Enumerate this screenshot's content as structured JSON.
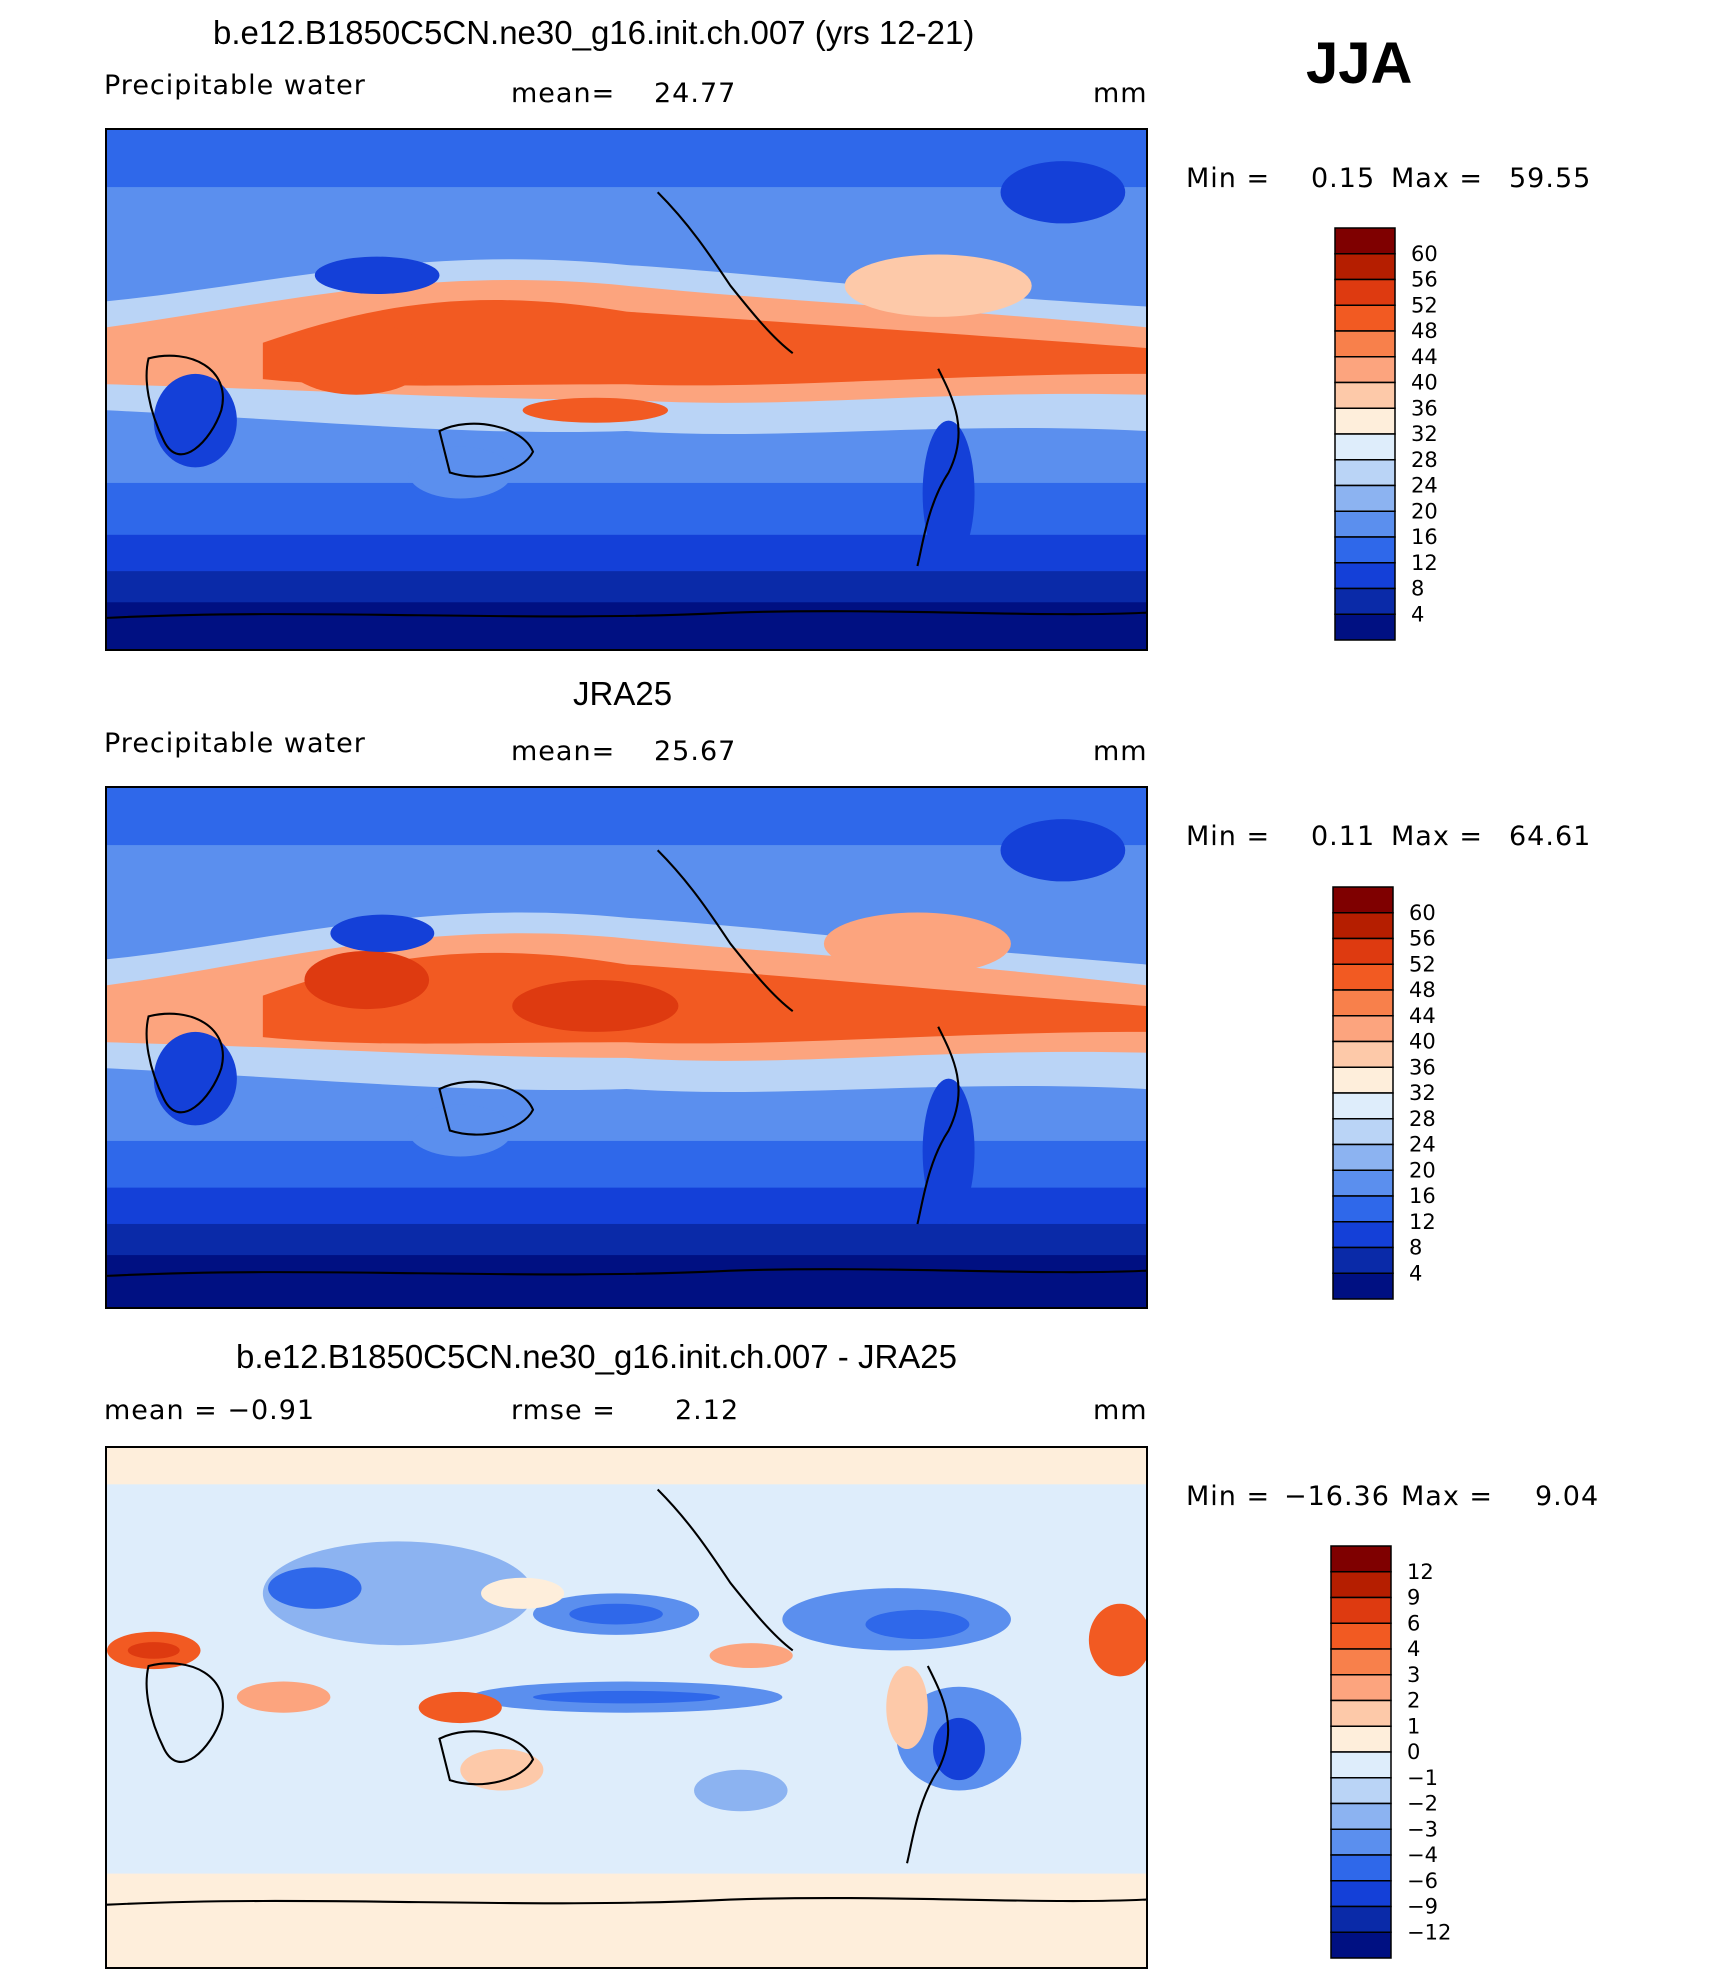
{
  "season": "JJA",
  "chart_data": [
    {
      "type": "heatmap",
      "title": "b.e12.B1850C5CN.ne30_g16.init.ch.007 (yrs 12-21)",
      "left_label": "Precipitable water",
      "stat_label": "mean=",
      "stat_value": "24.77",
      "units": "mm",
      "min_label": "Min =",
      "min_value": "0.15",
      "max_label": "Max =",
      "max_value": "59.55",
      "colorbar": {
        "levels": [
          "60",
          "56",
          "52",
          "48",
          "44",
          "40",
          "36",
          "32",
          "28",
          "24",
          "20",
          "16",
          "12",
          "8",
          "4"
        ],
        "colors": [
          "#7f0000",
          "#b51e00",
          "#de3a10",
          "#f25a22",
          "#f8804b",
          "#fca47e",
          "#fdc9a9",
          "#feeedb",
          "#deedfb",
          "#bad4f6",
          "#8cb3f1",
          "#5b8fee",
          "#2f68ea",
          "#1440d8",
          "#0a2aa8",
          "#001082"
        ]
      }
    },
    {
      "type": "heatmap",
      "title": "JRA25",
      "left_label": "Precipitable water",
      "stat_label": "mean=",
      "stat_value": "25.67",
      "units": "mm",
      "min_label": "Min =",
      "min_value": "0.11",
      "max_label": "Max =",
      "max_value": "64.61",
      "colorbar": {
        "levels": [
          "60",
          "56",
          "52",
          "48",
          "44",
          "40",
          "36",
          "32",
          "28",
          "24",
          "20",
          "16",
          "12",
          "8",
          "4"
        ],
        "colors": [
          "#7f0000",
          "#b51e00",
          "#de3a10",
          "#f25a22",
          "#f8804b",
          "#fca47e",
          "#fdc9a9",
          "#feeedb",
          "#deedfb",
          "#bad4f6",
          "#8cb3f1",
          "#5b8fee",
          "#2f68ea",
          "#1440d8",
          "#0a2aa8",
          "#001082"
        ]
      }
    },
    {
      "type": "heatmap",
      "title": "b.e12.B1850C5CN.ne30_g16.init.ch.007 - JRA25",
      "left_label": "mean = −0.91",
      "stat_label": "rmse =",
      "stat_value": "2.12",
      "units": "mm",
      "min_label": "Min =",
      "min_value": "−16.36",
      "max_label": "Max =",
      "max_value": "9.04",
      "colorbar": {
        "levels": [
          "12",
          "9",
          "6",
          "4",
          "3",
          "2",
          "1",
          "0",
          "−1",
          "−2",
          "−3",
          "−4",
          "−6",
          "−9",
          "−12"
        ],
        "colors": [
          "#7f0000",
          "#b51e00",
          "#de3a10",
          "#f25a22",
          "#f8804b",
          "#fca47e",
          "#fdc9a9",
          "#feeedb",
          "#deedfb",
          "#bad4f6",
          "#8cb3f1",
          "#5b8fee",
          "#2f68ea",
          "#1440d8",
          "#0a2aa8",
          "#001082"
        ]
      }
    }
  ]
}
